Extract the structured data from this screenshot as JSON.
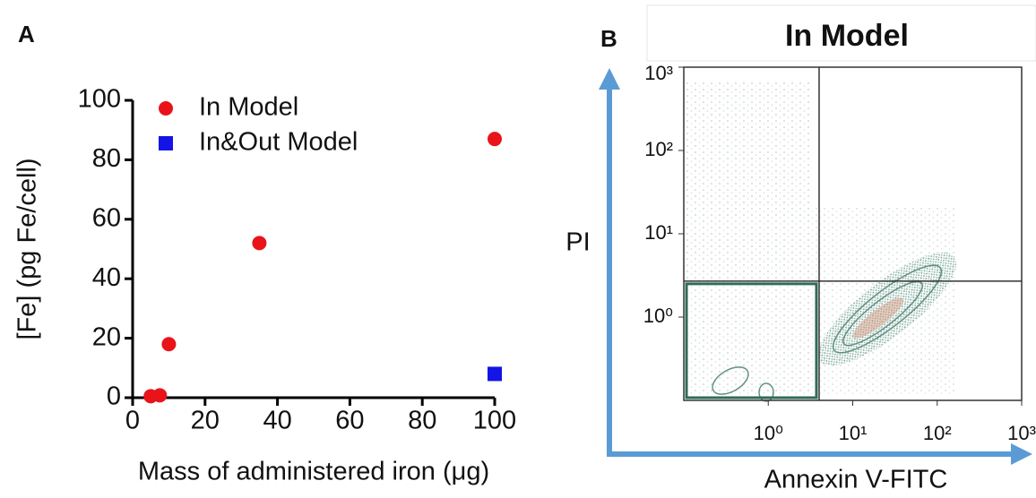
{
  "chart_data": [
    {
      "type": "scatter",
      "panel_label": "A",
      "x_label": "Mass of administered iron (μg)",
      "y_label": "[Fe] (pg Fe/cell)",
      "xlim": [
        0,
        100
      ],
      "ylim": [
        0,
        100
      ],
      "xticks": [
        0,
        20,
        40,
        60,
        80,
        100
      ],
      "yticks": [
        0,
        20,
        40,
        60,
        80,
        100
      ],
      "legend": "top-left",
      "series": [
        {
          "name": "In Model",
          "color": "#e8141a",
          "marker": "circle",
          "x": [
            5,
            7.5,
            10,
            35,
            100
          ],
          "values": [
            0.5,
            0.8,
            18,
            52,
            87
          ]
        },
        {
          "name": "In&Out Model",
          "color": "#1414e6",
          "marker": "square",
          "x": [
            100
          ],
          "values": [
            8
          ]
        }
      ]
    },
    {
      "type": "density",
      "panel_label": "B",
      "title": "In Model",
      "x_label": "Annexin V-FITC",
      "y_label": "PI",
      "log_scale": true,
      "xlim": [
        0.1,
        1000
      ],
      "ylim": [
        0.1,
        1000
      ],
      "xticks": [
        {
          "value": 1,
          "label": "10⁰"
        },
        {
          "value": 10,
          "label": "10¹"
        },
        {
          "value": 100,
          "label": "10²"
        },
        {
          "value": 1000,
          "label": "10³"
        }
      ],
      "yticks": [
        {
          "value": 1,
          "label": "10⁰"
        },
        {
          "value": 10,
          "label": "10¹"
        },
        {
          "value": 100,
          "label": "10²"
        },
        {
          "value": 1000,
          "label": "10³"
        }
      ],
      "quadrant_x": 4,
      "quadrant_y": 2.7,
      "color": "#2f6b5a",
      "axis_color": "#5b9bd5"
    }
  ]
}
